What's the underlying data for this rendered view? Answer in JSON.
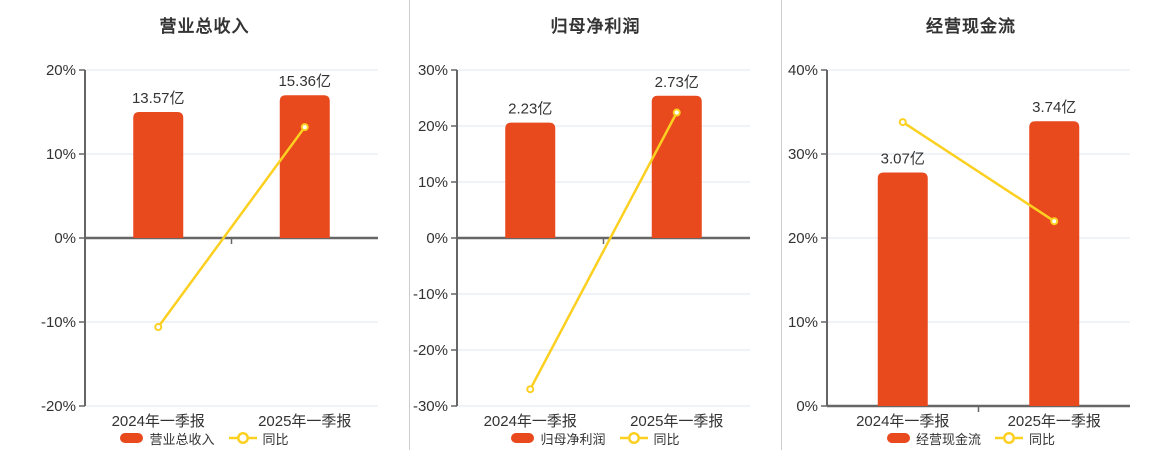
{
  "style": {
    "background": "#ffffff",
    "bar_color": "#e8491d",
    "line_color": "#fcd021",
    "marker_fill": "#ffffff",
    "grid_color": "#dfe6ed",
    "axis_color": "#666666",
    "zero_line_color": "#666666",
    "divider_color": "#cccccc",
    "text_color": "#333333",
    "title_color": "#333333"
  },
  "chart_data": [
    {
      "type": "bar",
      "title": "营业总收入",
      "categories": [
        "2024年一季报",
        "2025年一季报"
      ],
      "bar_series": {
        "name": "营业总收入",
        "unit": "亿",
        "values_yi": [
          13.57,
          15.36
        ],
        "value_labels": [
          "13.57亿",
          "15.36亿"
        ],
        "bar_axis_pct": [
          15.0,
          17.0
        ]
      },
      "line_series": {
        "name": "同比",
        "values_pct": [
          -10.6,
          13.2
        ]
      },
      "ylim": [
        -20,
        20
      ],
      "yticks": [
        20,
        10,
        0,
        -10,
        -20
      ],
      "ytick_labels": [
        "20%",
        "10%",
        "0%",
        "-10%",
        "-20%"
      ],
      "grid": true,
      "legend_position": "bottom"
    },
    {
      "type": "bar",
      "title": "归母净利润",
      "categories": [
        "2024年一季报",
        "2025年一季报"
      ],
      "bar_series": {
        "name": "归母净利润",
        "unit": "亿",
        "values_yi": [
          2.23,
          2.73
        ],
        "value_labels": [
          "2.23亿",
          "2.73亿"
        ],
        "bar_axis_pct": [
          20.6,
          25.4
        ]
      },
      "line_series": {
        "name": "同比",
        "values_pct": [
          -27.0,
          22.4
        ]
      },
      "ylim": [
        -30,
        30
      ],
      "yticks": [
        30,
        20,
        10,
        0,
        -10,
        -20,
        -30
      ],
      "ytick_labels": [
        "30%",
        "20%",
        "10%",
        "0%",
        "-10%",
        "-20%",
        "-30%"
      ],
      "grid": true,
      "legend_position": "bottom"
    },
    {
      "type": "bar",
      "title": "经营现金流",
      "categories": [
        "2024年一季报",
        "2025年一季报"
      ],
      "bar_series": {
        "name": "经营现金流",
        "unit": "亿",
        "values_yi": [
          3.07,
          3.74
        ],
        "value_labels": [
          "3.07亿",
          "3.74亿"
        ],
        "bar_axis_pct": [
          27.8,
          33.9
        ]
      },
      "line_series": {
        "name": "同比",
        "values_pct": [
          33.8,
          22.0
        ]
      },
      "ylim": [
        0,
        40
      ],
      "yticks": [
        40,
        30,
        20,
        10,
        0
      ],
      "ytick_labels": [
        "40%",
        "30%",
        "20%",
        "10%",
        "0%"
      ],
      "grid": true,
      "legend_position": "bottom"
    }
  ]
}
